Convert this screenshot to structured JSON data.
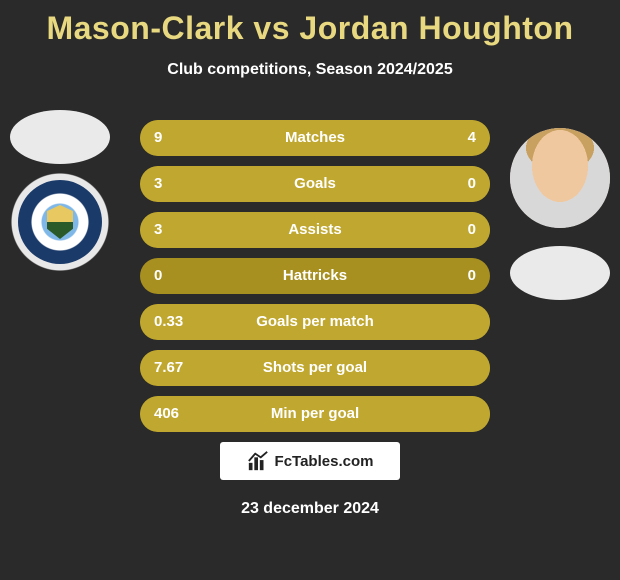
{
  "title": "Mason-Clark vs Jordan Houghton",
  "subtitle": "Club competitions, Season 2024/2025",
  "date": "23 december 2024",
  "footer_text": "FcTables.com",
  "colors": {
    "background": "#2a2a2a",
    "title": "#e8d880",
    "bar_base": "#a89020",
    "bar_segment": "#c0a830",
    "text": "#ffffff"
  },
  "rows": [
    {
      "label": "Matches",
      "left": "9",
      "right": "4",
      "left_pct": 69.2,
      "right_pct": 30.8
    },
    {
      "label": "Goals",
      "left": "3",
      "right": "0",
      "left_pct": 100,
      "right_pct": 0
    },
    {
      "label": "Assists",
      "left": "3",
      "right": "0",
      "left_pct": 100,
      "right_pct": 0
    },
    {
      "label": "Hattricks",
      "left": "0",
      "right": "0",
      "left_pct": 0,
      "right_pct": 0
    },
    {
      "label": "Goals per match",
      "left": "0.33",
      "right": null,
      "left_pct": 100,
      "right_pct": 0
    },
    {
      "label": "Shots per goal",
      "left": "7.67",
      "right": null,
      "left_pct": 100,
      "right_pct": 0
    },
    {
      "label": "Min per goal",
      "left": "406",
      "right": null,
      "left_pct": 100,
      "right_pct": 0
    }
  ]
}
